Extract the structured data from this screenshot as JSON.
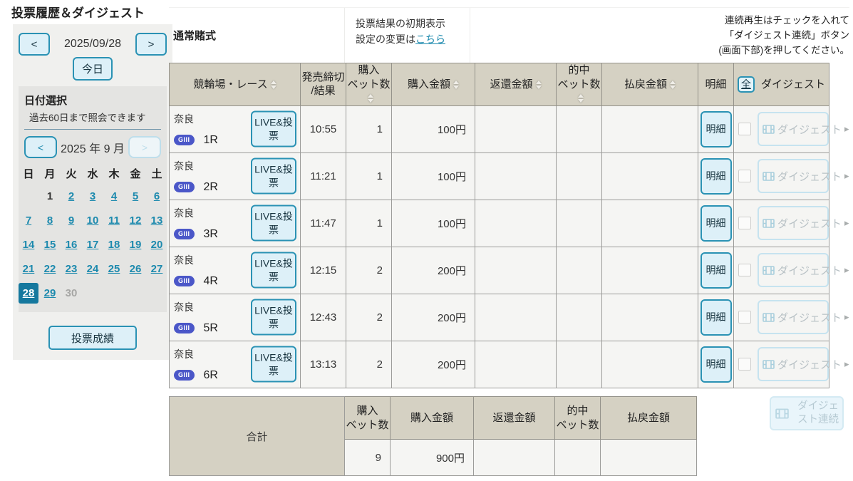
{
  "page": {
    "title": "投票履歴＆ダイジェスト"
  },
  "colors": {
    "accent_teal": "#2a92b4",
    "link_teal": "#1d8aae",
    "selected_day_bg": "#15789e",
    "table_header_bg": "#d5d1c3",
    "row_bg": "#f5f5f3",
    "grade_badge_bg": "#4b57c8",
    "button_bg": "#ddf0f8",
    "disabled_border": "#c6e3ef"
  },
  "sidebar": {
    "date_nav": {
      "prev": "<",
      "date": "2025/09/28",
      "next": ">",
      "today": "今日"
    },
    "calendar": {
      "heading": "日付選択",
      "subheading": "過去60日まで照会できます",
      "month_prev": "<",
      "month_label": "2025 年 9 月",
      "month_next": ">",
      "weekdays": [
        "日",
        "月",
        "火",
        "水",
        "木",
        "金",
        "土"
      ],
      "weeks": [
        [
          {
            "d": "",
            "t": "empty"
          },
          {
            "d": "1",
            "t": "plain"
          },
          {
            "d": "2",
            "t": "link"
          },
          {
            "d": "3",
            "t": "link"
          },
          {
            "d": "4",
            "t": "link"
          },
          {
            "d": "5",
            "t": "link"
          },
          {
            "d": "6",
            "t": "link"
          }
        ],
        [
          {
            "d": "7",
            "t": "link"
          },
          {
            "d": "8",
            "t": "link"
          },
          {
            "d": "9",
            "t": "link"
          },
          {
            "d": "10",
            "t": "link"
          },
          {
            "d": "11",
            "t": "link"
          },
          {
            "d": "12",
            "t": "link"
          },
          {
            "d": "13",
            "t": "link"
          }
        ],
        [
          {
            "d": "14",
            "t": "link"
          },
          {
            "d": "15",
            "t": "link"
          },
          {
            "d": "16",
            "t": "link"
          },
          {
            "d": "17",
            "t": "link"
          },
          {
            "d": "18",
            "t": "link"
          },
          {
            "d": "19",
            "t": "link"
          },
          {
            "d": "20",
            "t": "link"
          }
        ],
        [
          {
            "d": "21",
            "t": "link"
          },
          {
            "d": "22",
            "t": "link"
          },
          {
            "d": "23",
            "t": "link"
          },
          {
            "d": "24",
            "t": "link"
          },
          {
            "d": "25",
            "t": "link"
          },
          {
            "d": "26",
            "t": "link"
          },
          {
            "d": "27",
            "t": "link"
          }
        ],
        [
          {
            "d": "28",
            "t": "selected"
          },
          {
            "d": "29",
            "t": "link"
          },
          {
            "d": "30",
            "t": "disabled"
          },
          {
            "d": "",
            "t": "empty"
          },
          {
            "d": "",
            "t": "empty"
          },
          {
            "d": "",
            "t": "empty"
          },
          {
            "d": "",
            "t": "empty"
          }
        ]
      ]
    },
    "results_button": "投票成績"
  },
  "top": {
    "bet_type": "通常賭式",
    "settings_line1": "投票結果の初期表示",
    "settings_line2_prefix": "設定の変更は",
    "settings_link": "こちら",
    "playback_line1": "連続再生はチェックを入れて",
    "playback_line2": "「ダイジェスト連続」ボタン",
    "playback_line3": "(画面下部)を押してください。"
  },
  "table": {
    "columns": [
      {
        "label": "競輪場・レース",
        "sortable": true
      },
      {
        "label": "発売締切\n/結果",
        "sortable": false
      },
      {
        "label": "購入\nベット数",
        "sortable": true
      },
      {
        "label": "購入金額",
        "sortable": true
      },
      {
        "label": "返還金額",
        "sortable": true
      },
      {
        "label": "的中\nベット数",
        "sortable": true
      },
      {
        "label": "払戻金額",
        "sortable": true
      },
      {
        "label": "明細",
        "sortable": false
      },
      {
        "label": "ダイジェスト",
        "sortable": false
      }
    ],
    "select_all_label": "全",
    "digest_header": "ダイジェスト",
    "live_label": "LIVE&投票",
    "meisai_label": "明細",
    "digest_label": "ダイジェスト",
    "digest_arrow": "▸",
    "rows": [
      {
        "venue": "奈良",
        "grade": "GIII",
        "race": "1R",
        "closing": "10:55",
        "bets": "1",
        "amount": "100円",
        "refund": "",
        "hits": "",
        "payout": ""
      },
      {
        "venue": "奈良",
        "grade": "GIII",
        "race": "2R",
        "closing": "11:21",
        "bets": "1",
        "amount": "100円",
        "refund": "",
        "hits": "",
        "payout": ""
      },
      {
        "venue": "奈良",
        "grade": "GIII",
        "race": "3R",
        "closing": "11:47",
        "bets": "1",
        "amount": "100円",
        "refund": "",
        "hits": "",
        "payout": ""
      },
      {
        "venue": "奈良",
        "grade": "GIII",
        "race": "4R",
        "closing": "12:15",
        "bets": "2",
        "amount": "200円",
        "refund": "",
        "hits": "",
        "payout": ""
      },
      {
        "venue": "奈良",
        "grade": "GIII",
        "race": "5R",
        "closing": "12:43",
        "bets": "2",
        "amount": "200円",
        "refund": "",
        "hits": "",
        "payout": ""
      },
      {
        "venue": "奈良",
        "grade": "GIII",
        "race": "6R",
        "closing": "13:13",
        "bets": "2",
        "amount": "200円",
        "refund": "",
        "hits": "",
        "payout": ""
      }
    ]
  },
  "summary": {
    "total_label": "合計",
    "col_bets": "購入\nベット数",
    "col_amount": "購入金額",
    "col_refund": "返還金額",
    "col_hits": "的中\nベット数",
    "col_payout": "払戻金額",
    "bets": "9",
    "amount": "900円",
    "refund": "",
    "hits": "",
    "payout": ""
  },
  "digest_continuous_label": "ダイジェスト連続"
}
